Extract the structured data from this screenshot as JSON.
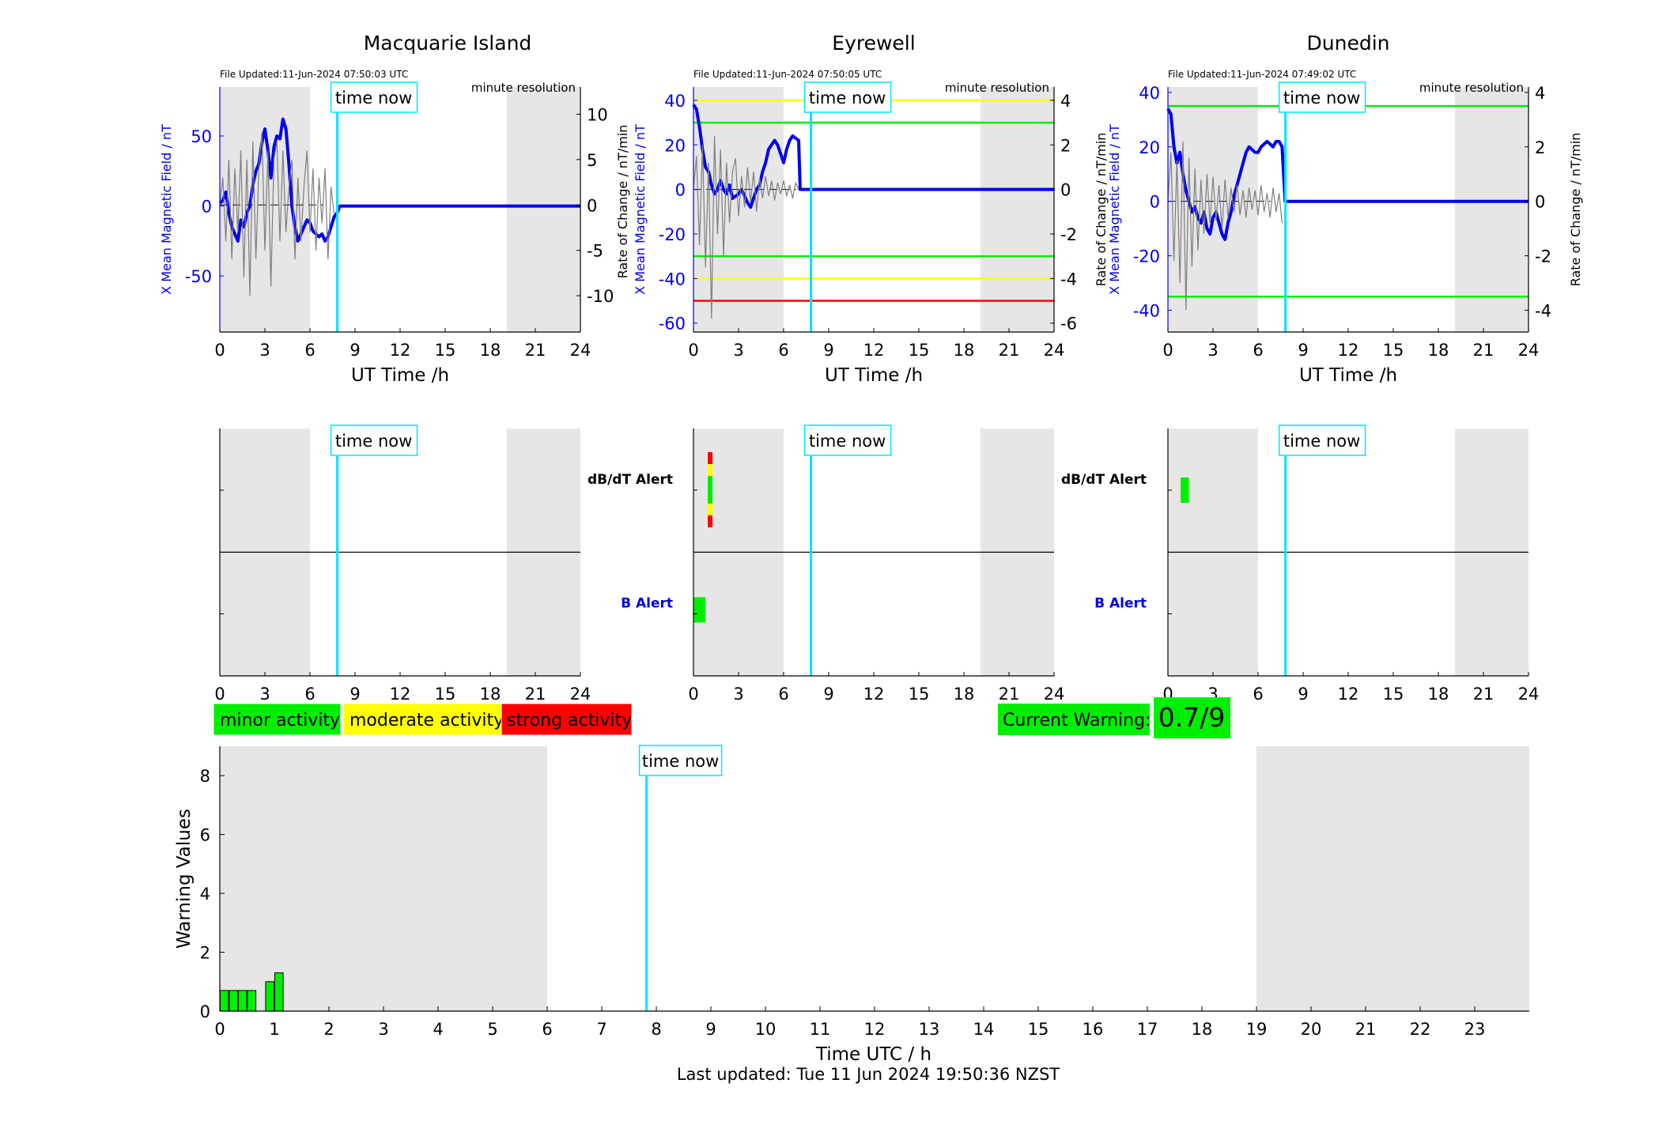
{
  "page": {
    "footer": "Last updated: Tue 11 Jun 2024 19:50:36 NZST"
  },
  "colors": {
    "mean_line": "#0000ee",
    "rate_line": "#7f7f7f",
    "night_shade": "#e6e6e6",
    "time_now": "#00e5ff",
    "minor": "#00ee00",
    "moderate": "#ffff00",
    "strong": "#ff0000",
    "b_alert_label": "#0000ee"
  },
  "legend": {
    "minor": "minor activity",
    "moderate": "moderate activity",
    "strong": "strong activity"
  },
  "current_warning": {
    "label": "Current Warning:",
    "value": "0.7/9"
  },
  "chart_data": [
    {
      "type": "line",
      "id": "macquarie",
      "title": "Macquarie Island",
      "file_updated": "File Updated:11-Jun-2024 07:50:03 UTC",
      "resolution": "minute resolution",
      "time_now_label": "time now",
      "xlabel": "UT Time /h",
      "ylabel_left": "X Mean Magnetic Field / nT",
      "ylabel_right": "",
      "xlim": [
        0,
        24
      ],
      "xticks": [
        0,
        3,
        6,
        9,
        12,
        15,
        18,
        21,
        24
      ],
      "ylim_left": [
        -90,
        85
      ],
      "yticks_left": [
        -50,
        0,
        50
      ],
      "ylim_right": [
        -14,
        13
      ],
      "yticks_right": [
        -10,
        -5,
        0,
        5,
        10
      ],
      "night_bands": [
        [
          0,
          6
        ],
        [
          19.1,
          24
        ]
      ],
      "time_now": 7.82,
      "thresholds": [],
      "series": [
        {
          "axis": "left",
          "x": [
            0,
            0.2,
            0.4,
            0.6,
            0.8,
            1.0,
            1.2,
            1.4,
            1.6,
            1.8,
            2.0,
            2.2,
            2.4,
            2.6,
            2.8,
            3.0,
            3.2,
            3.4,
            3.6,
            3.8,
            4.0,
            4.2,
            4.4,
            4.6,
            4.8,
            5.0,
            5.2,
            5.4,
            5.6,
            5.8,
            6.0,
            6.2,
            6.4,
            6.6,
            6.8,
            7.0,
            7.2,
            7.4,
            7.6,
            7.8,
            8.0,
            24
          ],
          "y": [
            2,
            4,
            10,
            -5,
            -15,
            -20,
            -25,
            -10,
            -15,
            -5,
            0,
            15,
            25,
            30,
            45,
            55,
            40,
            20,
            42,
            50,
            48,
            62,
            55,
            30,
            0,
            -15,
            -25,
            -20,
            -15,
            -10,
            -12,
            -18,
            -20,
            -22,
            -20,
            -25,
            -22,
            -15,
            -8,
            -5,
            0,
            0
          ]
        },
        {
          "axis": "right",
          "x": [
            0,
            0.2,
            0.4,
            0.6,
            0.8,
            1.0,
            1.2,
            1.4,
            1.6,
            1.8,
            2.0,
            2.2,
            2.4,
            2.6,
            2.8,
            3.0,
            3.2,
            3.4,
            3.6,
            3.8,
            4.0,
            4.2,
            4.4,
            4.6,
            4.8,
            5.0,
            5.2,
            5.4,
            5.6,
            5.8,
            6.0,
            6.2,
            6.4,
            6.6,
            6.8,
            7.0,
            7.2,
            7.4,
            7.6
          ],
          "y": [
            0,
            3,
            -4,
            5,
            -6,
            4,
            -3,
            6,
            -8,
            5,
            -10,
            7,
            -6,
            4,
            8,
            -5,
            6,
            -9,
            5,
            7,
            -4,
            6,
            -3,
            2,
            5,
            -6,
            3,
            -4,
            2,
            6,
            -3,
            4,
            -5,
            3,
            -2,
            4,
            -6,
            2,
            -1
          ]
        }
      ]
    },
    {
      "type": "line",
      "id": "eyrewell",
      "title": "Eyrewell",
      "file_updated": "File Updated:11-Jun-2024 07:50:05 UTC",
      "resolution": "minute resolution",
      "time_now_label": "time now",
      "xlabel": "UT Time /h",
      "ylabel_left": "X Mean Magnetic Field / nT",
      "ylabel_right": "Rate of Change / nT/min",
      "ylabel_right_outer": "Rate of Change / nT/min",
      "xlim": [
        0,
        24
      ],
      "xticks": [
        0,
        3,
        6,
        9,
        12,
        15,
        18,
        21,
        24
      ],
      "ylim_left": [
        -64,
        46
      ],
      "yticks_left": [
        -60,
        -40,
        -20,
        0,
        20,
        40
      ],
      "ylim_right": [
        -6.4,
        4.6
      ],
      "yticks_right": [
        -6,
        -4,
        -2,
        0,
        2,
        4
      ],
      "night_bands": [
        [
          0,
          6
        ],
        [
          19.1,
          24
        ]
      ],
      "time_now": 7.82,
      "thresholds": [
        {
          "axis": "right",
          "value": 4,
          "color": "#ffff00"
        },
        {
          "axis": "right",
          "value": 3,
          "color": "#00ee00"
        },
        {
          "axis": "right",
          "value": -3,
          "color": "#00ee00"
        },
        {
          "axis": "right",
          "value": -4,
          "color": "#ffff00"
        },
        {
          "axis": "right",
          "value": -5,
          "color": "#ff0000"
        }
      ],
      "series": [
        {
          "axis": "left",
          "x": [
            0,
            0.2,
            0.4,
            0.6,
            0.8,
            1.0,
            1.2,
            1.4,
            1.6,
            1.8,
            2.0,
            2.2,
            2.4,
            2.6,
            2.8,
            3.0,
            3.2,
            3.4,
            3.6,
            3.8,
            4.0,
            4.2,
            4.4,
            4.6,
            4.8,
            5.0,
            5.2,
            5.4,
            5.6,
            5.8,
            6.0,
            6.2,
            6.4,
            6.6,
            6.8,
            7.0,
            7.1,
            24
          ],
          "y": [
            38,
            36,
            28,
            18,
            10,
            8,
            2,
            -2,
            0,
            4,
            0,
            -2,
            2,
            -4,
            -3,
            -2,
            0,
            -3,
            -6,
            -8,
            -4,
            0,
            2,
            8,
            12,
            18,
            20,
            22,
            20,
            16,
            12,
            18,
            22,
            24,
            23,
            22,
            0,
            0
          ]
        },
        {
          "axis": "right",
          "x": [
            0,
            0.2,
            0.4,
            0.6,
            0.8,
            1.0,
            1.2,
            1.4,
            1.6,
            1.8,
            2.0,
            2.2,
            2.4,
            2.6,
            2.8,
            3.0,
            3.2,
            3.4,
            3.6,
            3.8,
            4.0,
            4.2,
            4.4,
            4.6,
            4.8,
            5.0,
            5.2,
            5.4,
            5.6,
            5.8,
            6.0,
            6.2,
            6.4,
            6.6,
            6.8,
            7.0
          ],
          "y": [
            0,
            1.5,
            -2.5,
            2,
            -3.5,
            1.2,
            -5.8,
            2.4,
            -2,
            1.8,
            -3,
            1.2,
            -1.5,
            0.8,
            1.4,
            -1.2,
            0.6,
            -0.8,
            1.0,
            -0.6,
            0.8,
            -1.0,
            0.5,
            -0.4,
            0.6,
            -0.3,
            0.4,
            -0.5,
            0.3,
            -0.2,
            0.4,
            -0.3,
            0.2,
            -0.4,
            0.3,
            0
          ]
        }
      ]
    },
    {
      "type": "line",
      "id": "dunedin",
      "title": "Dunedin",
      "file_updated": "File Updated:11-Jun-2024 07:49:02 UTC",
      "resolution": "minute resolution",
      "time_now_label": "time now",
      "xlabel": "UT Time /h",
      "ylabel_left": "X Mean Magnetic Field / nT",
      "ylabel_right": "Rate of Change / nT/min",
      "xlim": [
        0,
        24
      ],
      "xticks": [
        0,
        3,
        6,
        9,
        12,
        15,
        18,
        21,
        24
      ],
      "ylim_left": [
        -48,
        42
      ],
      "yticks_left": [
        -40,
        -20,
        0,
        20,
        40
      ],
      "ylim_right": [
        -4.8,
        4.2
      ],
      "yticks_right": [
        -4,
        -2,
        0,
        2,
        4
      ],
      "night_bands": [
        [
          0,
          6
        ],
        [
          19.1,
          24
        ]
      ],
      "time_now": 7.82,
      "thresholds": [
        {
          "axis": "right",
          "value": 3.5,
          "color": "#00ee00"
        },
        {
          "axis": "right",
          "value": -3.5,
          "color": "#00ee00"
        }
      ],
      "series": [
        {
          "axis": "left",
          "x": [
            0,
            0.2,
            0.4,
            0.6,
            0.8,
            1.0,
            1.2,
            1.4,
            1.6,
            1.8,
            2.0,
            2.2,
            2.4,
            2.6,
            2.8,
            3.0,
            3.2,
            3.4,
            3.6,
            3.8,
            4.0,
            4.2,
            4.4,
            4.6,
            4.8,
            5.0,
            5.2,
            5.4,
            5.6,
            5.8,
            6.0,
            6.2,
            6.4,
            6.6,
            6.8,
            7.0,
            7.2,
            7.4,
            7.6,
            7.8,
            24
          ],
          "y": [
            34,
            32,
            20,
            14,
            18,
            10,
            4,
            0,
            -4,
            -2,
            -6,
            -8,
            -4,
            -10,
            -12,
            -6,
            -4,
            -8,
            -12,
            -14,
            -8,
            -4,
            2,
            6,
            10,
            14,
            18,
            20,
            19,
            18,
            18,
            20,
            21,
            22,
            21,
            20,
            22,
            22,
            20,
            0,
            0
          ]
        },
        {
          "axis": "right",
          "x": [
            0,
            0.2,
            0.4,
            0.6,
            0.8,
            1.0,
            1.2,
            1.4,
            1.6,
            1.8,
            2.0,
            2.2,
            2.4,
            2.6,
            2.8,
            3.0,
            3.2,
            3.4,
            3.6,
            3.8,
            4.0,
            4.2,
            4.4,
            4.6,
            4.8,
            5.0,
            5.2,
            5.4,
            5.6,
            5.8,
            6.0,
            6.2,
            6.4,
            6.6,
            6.8,
            7.0,
            7.2,
            7.4,
            7.6
          ],
          "y": [
            0,
            1.8,
            -2.2,
            1.5,
            -3.0,
            2.2,
            -4.0,
            1.6,
            -2.4,
            1.2,
            -1.8,
            0.8,
            -1.2,
            1.0,
            -0.8,
            0.9,
            -0.7,
            0.6,
            -1.0,
            0.8,
            -0.6,
            0.5,
            -0.4,
            0.6,
            -0.5,
            0.4,
            -0.6,
            0.5,
            -0.3,
            0.4,
            -0.5,
            0.6,
            -0.4,
            0.3,
            -0.6,
            0.5,
            -0.4,
            0.3,
            -0.8
          ]
        }
      ]
    },
    {
      "type": "heatmap",
      "id": "macquarie_alert",
      "time_now_label": "time now",
      "xlim": [
        0,
        24
      ],
      "xticks": [
        0,
        3,
        6,
        9,
        12,
        15,
        18,
        21,
        24
      ],
      "night_bands": [
        [
          0,
          6
        ],
        [
          19.1,
          24
        ]
      ],
      "time_now": 7.82,
      "rows": [
        "dB/dT Alert",
        "B Alert"
      ],
      "row_labels_visible": true,
      "cells": []
    },
    {
      "type": "heatmap",
      "id": "eyrewell_alert",
      "time_now_label": "time now",
      "xlim": [
        0,
        24
      ],
      "xticks": [
        0,
        3,
        6,
        9,
        12,
        15,
        18,
        21,
        24
      ],
      "night_bands": [
        [
          0,
          6
        ],
        [
          19.1,
          24
        ]
      ],
      "time_now": 7.82,
      "rows": [
        "dB/dT Alert",
        "B Alert"
      ],
      "row_labels_visible": true,
      "cells": [
        {
          "row": 0,
          "x0": 0.95,
          "x1": 1.25,
          "levels": [
            "strong",
            "moderate",
            "minor",
            "moderate",
            "strong"
          ]
        },
        {
          "row": 1,
          "x0": 0.0,
          "x1": 0.8,
          "levels": [
            "minor"
          ]
        }
      ]
    },
    {
      "type": "heatmap",
      "id": "dunedin_alert",
      "time_now_label": "time now",
      "xlim": [
        0,
        24
      ],
      "xticks": [
        0,
        3,
        6,
        9,
        12,
        15,
        18,
        21,
        24
      ],
      "night_bands": [
        [
          0,
          6
        ],
        [
          19.1,
          24
        ]
      ],
      "time_now": 7.82,
      "rows": [
        "dB/dT Alert",
        "B Alert"
      ],
      "row_labels_visible": false,
      "cells": [
        {
          "row": 0,
          "x0": 0.85,
          "x1": 1.4,
          "levels": [
            "minor"
          ]
        }
      ]
    },
    {
      "type": "bar",
      "id": "warning_values",
      "time_now_label": "time now",
      "xlabel": "Time UTC / h",
      "ylabel": "Warning Values",
      "xlim": [
        0,
        24
      ],
      "xticks": [
        0,
        1,
        2,
        3,
        4,
        5,
        6,
        7,
        8,
        9,
        10,
        11,
        12,
        13,
        14,
        15,
        16,
        17,
        18,
        19,
        20,
        21,
        22,
        23
      ],
      "ylim": [
        0,
        9
      ],
      "yticks": [
        0,
        2,
        4,
        6,
        8
      ],
      "night_bands": [
        [
          0,
          6
        ],
        [
          19.0,
          24
        ]
      ],
      "time_now": 7.82,
      "bar_width": 0.155,
      "x": [
        0.083,
        0.25,
        0.417,
        0.583,
        0.917,
        1.083
      ],
      "values": [
        0.7,
        0.7,
        0.7,
        0.7,
        1.0,
        1.3
      ]
    }
  ]
}
